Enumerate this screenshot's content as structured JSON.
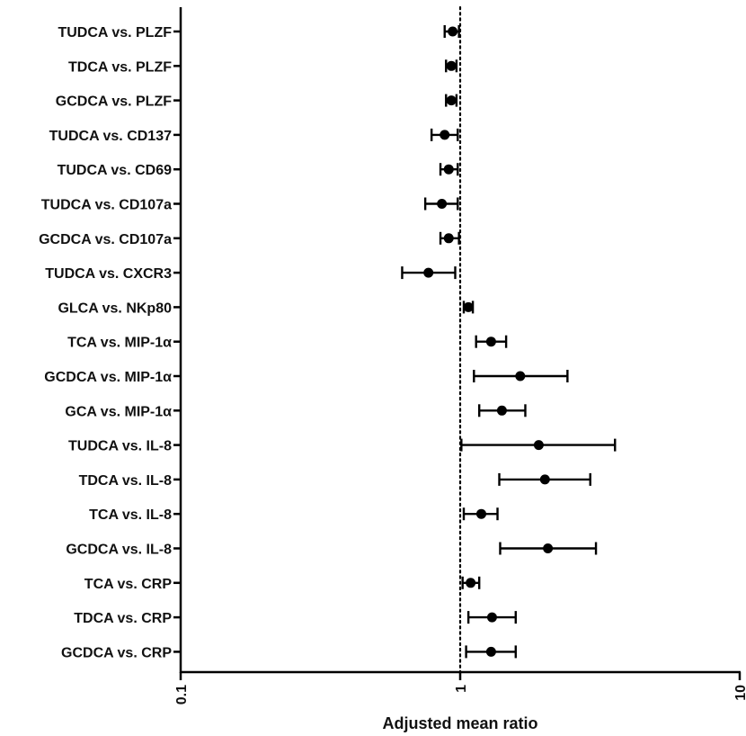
{
  "chart_data": {
    "type": "forest",
    "xlabel": "Adjusted mean ratio",
    "xscale": "log",
    "xlim": [
      0.1,
      10
    ],
    "xticks": [
      0.1,
      1,
      10
    ],
    "xtick_labels": [
      "0.1",
      "1",
      "10"
    ],
    "reference_line": 1,
    "grid": false,
    "marker_color": "#000000",
    "rows": [
      {
        "label": "TUDCA vs. PLZF",
        "ratio": 0.94,
        "ci_low": 0.88,
        "ci_high": 0.99
      },
      {
        "label": "TDCA vs. PLZF",
        "ratio": 0.93,
        "ci_low": 0.89,
        "ci_high": 0.97
      },
      {
        "label": "GCDCA vs. PLZF",
        "ratio": 0.93,
        "ci_low": 0.89,
        "ci_high": 0.97
      },
      {
        "label": "TUDCA vs. CD137",
        "ratio": 0.88,
        "ci_low": 0.79,
        "ci_high": 0.98
      },
      {
        "label": "TUDCA vs. CD69",
        "ratio": 0.91,
        "ci_low": 0.85,
        "ci_high": 0.98
      },
      {
        "label": "TUDCA vs. CD107a",
        "ratio": 0.86,
        "ci_low": 0.75,
        "ci_high": 0.98
      },
      {
        "label": "GCDCA vs. CD107a",
        "ratio": 0.91,
        "ci_low": 0.85,
        "ci_high": 0.99
      },
      {
        "label": "TUDCA vs. CXCR3",
        "ratio": 0.77,
        "ci_low": 0.62,
        "ci_high": 0.96
      },
      {
        "label": "GLCA vs. NKp80",
        "ratio": 1.07,
        "ci_low": 1.03,
        "ci_high": 1.11
      },
      {
        "label": "TCA vs. MIP-1α",
        "ratio": 1.29,
        "ci_low": 1.14,
        "ci_high": 1.46
      },
      {
        "label": "GCDCA vs. MIP-1α",
        "ratio": 1.64,
        "ci_low": 1.12,
        "ci_high": 2.42
      },
      {
        "label": "GCA vs. MIP-1α",
        "ratio": 1.41,
        "ci_low": 1.17,
        "ci_high": 1.71
      },
      {
        "label": "TUDCA vs. IL-8",
        "ratio": 1.91,
        "ci_low": 1.01,
        "ci_high": 3.58
      },
      {
        "label": "TDCA vs. IL-8",
        "ratio": 2.01,
        "ci_low": 1.38,
        "ci_high": 2.92
      },
      {
        "label": "TCA vs. IL-8",
        "ratio": 1.19,
        "ci_low": 1.03,
        "ci_high": 1.36
      },
      {
        "label": "GCDCA vs. IL-8",
        "ratio": 2.06,
        "ci_low": 1.39,
        "ci_high": 3.06
      },
      {
        "label": "TCA vs. CRP",
        "ratio": 1.09,
        "ci_low": 1.02,
        "ci_high": 1.17
      },
      {
        "label": "TDCA vs. CRP",
        "ratio": 1.3,
        "ci_low": 1.07,
        "ci_high": 1.58
      },
      {
        "label": "GCDCA vs. CRP",
        "ratio": 1.29,
        "ci_low": 1.05,
        "ci_high": 1.58
      }
    ]
  }
}
